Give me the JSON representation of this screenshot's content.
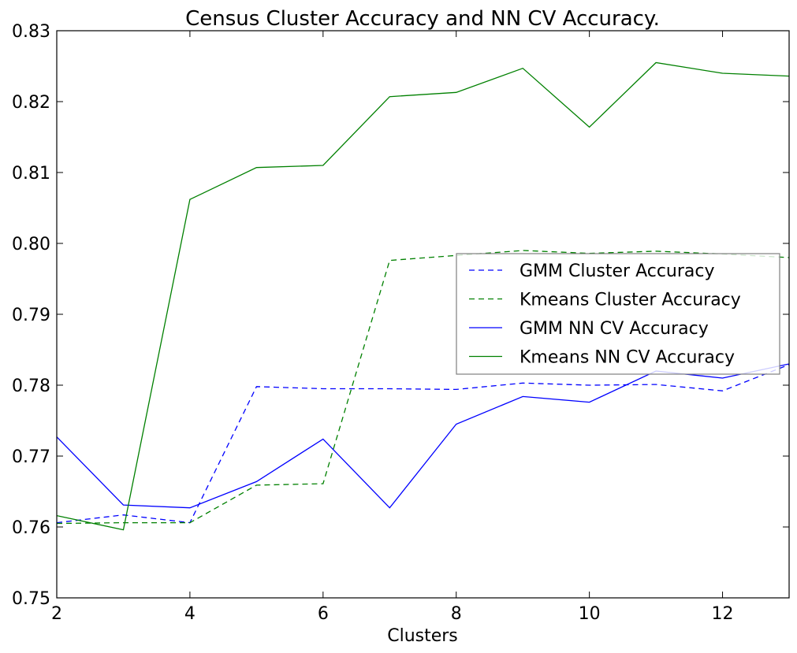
{
  "chart_data": {
    "type": "line",
    "title": "Census Cluster Accuracy and NN CV Accuracy.",
    "xlabel": "Clusters",
    "ylabel": "",
    "xlim": [
      2,
      13
    ],
    "ylim": [
      0.75,
      0.83
    ],
    "xticks": [
      2,
      4,
      6,
      8,
      10,
      12
    ],
    "xtick_labels": [
      "2",
      "4",
      "6",
      "8",
      "10",
      "12"
    ],
    "yticks": [
      0.75,
      0.76,
      0.77,
      0.78,
      0.79,
      0.8,
      0.81,
      0.82,
      0.83
    ],
    "ytick_labels": [
      "0.75",
      "0.76",
      "0.77",
      "0.78",
      "0.79",
      "0.80",
      "0.81",
      "0.82",
      "0.83"
    ],
    "grid": false,
    "legend_position": "center-right",
    "x": [
      2,
      3,
      4,
      5,
      6,
      7,
      8,
      9,
      10,
      11,
      12,
      13
    ],
    "series": [
      {
        "name": "GMM Cluster Accuracy",
        "color": "#0000ff",
        "style": "dashed",
        "values": [
          0.7606,
          0.7617,
          0.7606,
          0.7798,
          0.7795,
          0.7795,
          0.7794,
          0.7803,
          0.78,
          0.7801,
          0.7792,
          0.7829
        ]
      },
      {
        "name": "Kmeans Cluster Accuracy",
        "color": "#008000",
        "style": "dashed",
        "values": [
          0.7605,
          0.7606,
          0.7606,
          0.7659,
          0.7661,
          0.7976,
          0.7983,
          0.799,
          0.7986,
          0.7989,
          0.7985,
          0.798
        ]
      },
      {
        "name": "GMM NN CV Accuracy",
        "color": "#0000ff",
        "style": "solid",
        "values": [
          0.7727,
          0.7631,
          0.7627,
          0.7664,
          0.7724,
          0.7627,
          0.7745,
          0.7784,
          0.7776,
          0.782,
          0.781,
          0.783
        ]
      },
      {
        "name": "Kmeans NN CV Accuracy",
        "color": "#008000",
        "style": "solid",
        "values": [
          0.7616,
          0.7596,
          0.8062,
          0.8107,
          0.811,
          0.8207,
          0.8213,
          0.8247,
          0.8164,
          0.8255,
          0.824,
          0.8236
        ]
      }
    ]
  }
}
